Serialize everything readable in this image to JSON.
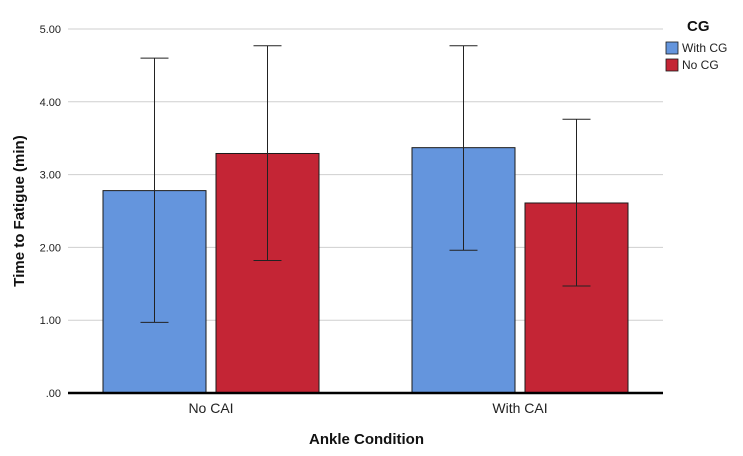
{
  "chart_data": {
    "type": "bar",
    "title": "",
    "xlabel": "Ankle Condition",
    "ylabel": "Time to Fatigue (min)",
    "ylim": [
      0,
      5
    ],
    "yticks": [
      0,
      1,
      2,
      3,
      4,
      5
    ],
    "ytick_labels": [
      ".00",
      "1.00",
      "2.00",
      "3.00",
      "4.00",
      "5.00"
    ],
    "grid": true,
    "categories": [
      "No CAI",
      "With CAI"
    ],
    "legend": {
      "title": "CG",
      "position": "top-right"
    },
    "series": [
      {
        "name": "With CG",
        "color": "#6495dd",
        "values": [
          2.78,
          3.37
        ],
        "error_low": [
          0.97,
          1.96
        ],
        "error_high": [
          4.6,
          4.77
        ]
      },
      {
        "name": "No CG",
        "color": "#c42535",
        "values": [
          3.29,
          2.61
        ],
        "error_low": [
          1.82,
          1.47
        ],
        "error_high": [
          4.77,
          3.76
        ]
      }
    ]
  }
}
